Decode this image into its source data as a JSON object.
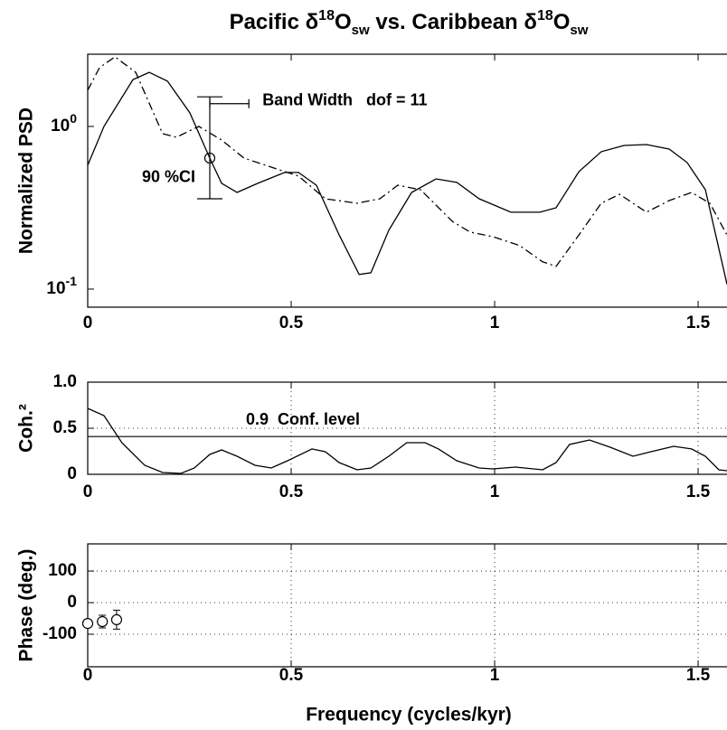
{
  "chart_data": [
    {
      "type": "line",
      "title": [
        {
          "text": "Pacific δ",
          "pos": "base"
        },
        {
          "text": "18",
          "pos": "sup"
        },
        {
          "text": "O",
          "pos": "base"
        },
        {
          "text": "sw",
          "pos": "sub"
        },
        {
          "text": " vs. Caribbean δ",
          "pos": "base"
        },
        {
          "text": "18",
          "pos": "sup"
        },
        {
          "text": "O",
          "pos": "base"
        },
        {
          "text": "sw",
          "pos": "sub"
        }
      ],
      "y_label": "Normalized PSD",
      "log_y": true,
      "grid": false,
      "xlim": [
        0,
        1.571
      ],
      "ylim": [
        0.0774,
        2.78
      ],
      "xticks": [
        0,
        0.5,
        1,
        1.5
      ],
      "yticks": [
        {
          "value": 0.1,
          "label": "10",
          "exponent": "-1"
        },
        {
          "value": 1,
          "label": "10",
          "exponent": "0"
        }
      ],
      "series": [
        {
          "color": "#000000",
          "dash": "solid",
          "x": [
            0,
            0.04,
            0.111,
            0.151,
            0.196,
            0.251,
            0.3,
            0.329,
            0.367,
            0.418,
            0.484,
            0.518,
            0.562,
            0.618,
            0.667,
            0.696,
            0.74,
            0.796,
            0.856,
            0.907,
            0.962,
            1.04,
            1.111,
            1.151,
            1.207,
            1.262,
            1.318,
            1.373,
            1.429,
            1.473,
            1.518,
            1.571
          ],
          "values": [
            0.577,
            1.0,
            1.94,
            2.15,
            1.9,
            1.21,
            0.639,
            0.447,
            0.393,
            0.447,
            0.521,
            0.521,
            0.435,
            0.215,
            0.123,
            0.126,
            0.23,
            0.393,
            0.476,
            0.453,
            0.359,
            0.297,
            0.297,
            0.316,
            0.527,
            0.699,
            0.764,
            0.774,
            0.726,
            0.6,
            0.408,
            0.107
          ]
        },
        {
          "color": "#000000",
          "dash": "dashdot",
          "x": [
            0,
            0.029,
            0.067,
            0.118,
            0.184,
            0.218,
            0.273,
            0.329,
            0.384,
            0.451,
            0.518,
            0.584,
            0.662,
            0.718,
            0.762,
            0.818,
            0.896,
            0.94,
            0.996,
            1.062,
            1.118,
            1.151,
            1.207,
            1.262,
            1.307,
            1.373,
            1.429,
            1.484,
            1.529,
            1.571
          ],
          "values": [
            1.67,
            2.3,
            2.68,
            2.15,
            0.903,
            0.858,
            1.0,
            0.825,
            0.639,
            0.562,
            0.495,
            0.359,
            0.337,
            0.359,
            0.435,
            0.408,
            0.261,
            0.224,
            0.21,
            0.185,
            0.147,
            0.138,
            0.215,
            0.337,
            0.383,
            0.297,
            0.35,
            0.393,
            0.337,
            0.215
          ]
        }
      ],
      "ci": {
        "x": 0.3,
        "value": 0.639,
        "low": 0.359,
        "high": 1.52,
        "label": "90 %CI"
      },
      "bandwidth": {
        "x": [
          0.3,
          0.396
        ],
        "y": 1.38,
        "label": "Band Width   dof = 11"
      }
    },
    {
      "type": "line",
      "y_label": "Coh.²",
      "log_y": false,
      "grid": true,
      "xlim": [
        0,
        1.571
      ],
      "ylim": [
        0,
        1
      ],
      "xticks": [
        0,
        0.5,
        1,
        1.5
      ],
      "yticks": [
        0,
        0.5,
        {
          "value": 1,
          "label": "1.0"
        }
      ],
      "series": [
        {
          "color": "#000000",
          "dash": "solid",
          "x": [
            0,
            0.04,
            0.084,
            0.14,
            0.184,
            0.229,
            0.262,
            0.3,
            0.329,
            0.367,
            0.411,
            0.451,
            0.491,
            0.551,
            0.584,
            0.618,
            0.662,
            0.696,
            0.74,
            0.784,
            0.829,
            0.862,
            0.907,
            0.962,
            0.996,
            1.051,
            1.118,
            1.151,
            1.184,
            1.233,
            1.284,
            1.34,
            1.384,
            1.44,
            1.484,
            1.518,
            1.551,
            1.571
          ],
          "values": [
            0.716,
            0.637,
            0.343,
            0.098,
            0.02,
            0.01,
            0.069,
            0.216,
            0.265,
            0.196,
            0.098,
            0.069,
            0.147,
            0.275,
            0.245,
            0.127,
            0.049,
            0.069,
            0.196,
            0.343,
            0.343,
            0.275,
            0.147,
            0.069,
            0.059,
            0.078,
            0.049,
            0.127,
            0.324,
            0.373,
            0.294,
            0.196,
            0.245,
            0.304,
            0.275,
            0.196,
            0.049,
            0.039
          ]
        }
      ],
      "hline": {
        "value": 0.41,
        "label": "0.9  Conf. level"
      }
    },
    {
      "type": "scatter",
      "y_label": "Phase (deg.)",
      "x_label": "Frequency (cycles/kyr)",
      "log_y": false,
      "grid": true,
      "xlim": [
        0,
        1.571
      ],
      "ylim": [
        -203,
        186
      ],
      "xticks": [
        0,
        0.5,
        1,
        1.5
      ],
      "yticks": [
        -100,
        0,
        100
      ],
      "series": [
        {
          "color": "#000000",
          "x": [
            0,
            0.036,
            0.071
          ],
          "values": [
            -66,
            -60,
            -54
          ],
          "errors": [
            10,
            20,
            30
          ]
        }
      ]
    }
  ]
}
